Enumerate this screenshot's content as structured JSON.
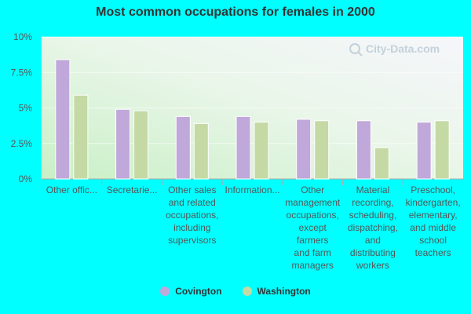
{
  "colors": {
    "covington": "#c0a8da",
    "washington": "#c4d9a4"
  },
  "chart_data": {
    "type": "bar",
    "title": "Most common occupations for females in 2000",
    "xlabel": "",
    "ylabel": "",
    "ylim": [
      0,
      10
    ],
    "yticks": [
      "0%",
      "2.5%",
      "5%",
      "7.5%",
      "10%"
    ],
    "categories": [
      "Other offic...",
      "Secretarie...",
      "Other sales and related occupations, including supervisors",
      "Information...",
      "Other management occupations, except farmers and farm managers",
      "Material recording, scheduling, dispatching, and distributing workers",
      "Preschool, kindergarten, elementary, and middle school teachers"
    ],
    "category_lines": [
      [
        "Other offic..."
      ],
      [
        "Secretarie..."
      ],
      [
        "Other sales",
        "and related",
        "occupations,",
        "including",
        "supervisors"
      ],
      [
        "Information..."
      ],
      [
        "Other",
        "management",
        "occupations,",
        "except",
        "farmers",
        "and farm",
        "managers"
      ],
      [
        "Material",
        "recording,",
        "scheduling,",
        "dispatching,",
        "and",
        "distributing",
        "workers"
      ],
      [
        "Preschool,",
        "kindergarten,",
        "elementary,",
        "and middle",
        "school",
        "teachers"
      ]
    ],
    "series": [
      {
        "name": "Covington",
        "values": [
          8.4,
          4.9,
          4.4,
          4.4,
          4.2,
          4.1,
          4.0
        ]
      },
      {
        "name": "Washington",
        "values": [
          5.9,
          4.8,
          3.9,
          4.0,
          4.1,
          2.2,
          4.1
        ]
      }
    ],
    "legend_position": "bottom",
    "grid": true
  },
  "watermark": "City-Data.com"
}
